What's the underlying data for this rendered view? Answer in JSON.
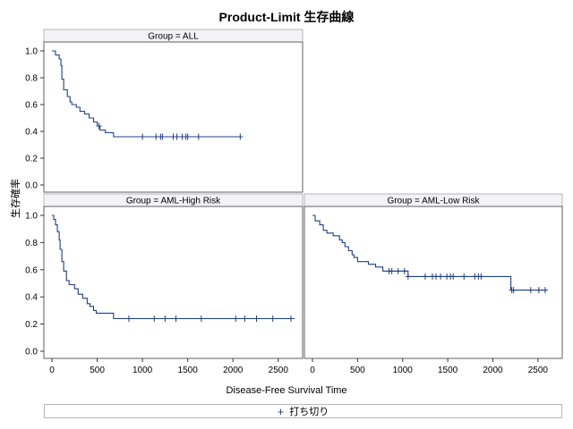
{
  "chart_data": {
    "type": "line",
    "title": "Product-Limit 生存曲線",
    "xlabel": "Disease-Free Survival Time",
    "ylabel": "生存確率",
    "xlim": [
      0,
      2700
    ],
    "ylim": [
      0,
      1
    ],
    "x_ticks": [
      "0",
      "500",
      "1000",
      "1500",
      "2000",
      "2500"
    ],
    "y_ticks": [
      "0.0",
      "0.2",
      "0.4",
      "0.6",
      "0.8",
      "1.0"
    ],
    "step": true,
    "line_color": "#1f3f86",
    "legend": [
      {
        "marker": "+",
        "label": "打ち切り"
      }
    ],
    "panels": [
      {
        "name": "Group = ALL",
        "position": "top-left",
        "x": [
          0,
          40,
          80,
          100,
          110,
          130,
          170,
          200,
          220,
          270,
          310,
          360,
          410,
          460,
          500,
          530,
          590,
          680,
          2080
        ],
        "y": [
          1.0,
          0.97,
          0.94,
          0.89,
          0.79,
          0.71,
          0.66,
          0.62,
          0.6,
          0.58,
          0.55,
          0.53,
          0.5,
          0.47,
          0.44,
          0.41,
          0.39,
          0.36,
          0.36
        ],
        "censored": [
          520,
          1000,
          1150,
          1200,
          1220,
          1340,
          1380,
          1440,
          1480,
          1500,
          1620,
          2080
        ]
      },
      {
        "name": "Group = AML-High Risk",
        "position": "bottom-left",
        "x": [
          0,
          20,
          40,
          60,
          80,
          90,
          110,
          130,
          160,
          190,
          250,
          290,
          340,
          390,
          420,
          460,
          490,
          560,
          680,
          2680
        ],
        "y": [
          1.0,
          0.97,
          0.93,
          0.88,
          0.82,
          0.75,
          0.66,
          0.59,
          0.52,
          0.49,
          0.46,
          0.42,
          0.39,
          0.35,
          0.33,
          0.3,
          0.28,
          0.28,
          0.24,
          0.24
        ],
        "censored": [
          850,
          1130,
          1250,
          1370,
          1650,
          2030,
          2130,
          2260,
          2440,
          2640
        ]
      },
      {
        "name": "Group = AML-Low Risk",
        "position": "bottom-right",
        "x": [
          0,
          30,
          80,
          120,
          160,
          230,
          300,
          330,
          360,
          400,
          440,
          460,
          500,
          620,
          700,
          780,
          1060,
          2200,
          2580
        ],
        "y": [
          1.0,
          0.96,
          0.93,
          0.89,
          0.87,
          0.85,
          0.82,
          0.8,
          0.77,
          0.74,
          0.71,
          0.69,
          0.66,
          0.64,
          0.62,
          0.59,
          0.55,
          0.45,
          0.45
        ],
        "censored": [
          850,
          880,
          950,
          1020,
          1060,
          1250,
          1330,
          1370,
          1420,
          1490,
          1530,
          1560,
          1680,
          1800,
          1840,
          1870,
          2210,
          2230,
          2420,
          2510,
          2580
        ]
      }
    ]
  }
}
